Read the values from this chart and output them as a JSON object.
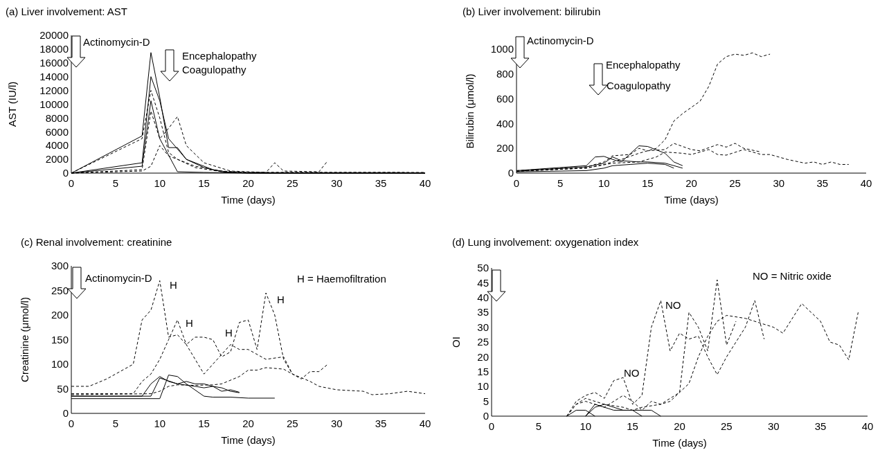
{
  "chart_data": [
    {
      "type": "line",
      "title": "(a) Liver involvement: AST",
      "xlabel": "Time (days)",
      "ylabel": "AST (IU/l)",
      "xlim": [
        0,
        40
      ],
      "ylim": [
        0,
        20000
      ],
      "xticks": [
        0,
        5,
        10,
        15,
        20,
        25,
        30,
        35,
        40
      ],
      "yticks": [
        0,
        2000,
        4000,
        6000,
        8000,
        10000,
        12000,
        14000,
        16000,
        18000,
        20000
      ],
      "annotations": [
        "Actinomycin-D",
        "Encephalopathy",
        "Coagulopathy"
      ],
      "series": [
        {
          "color": "#000000",
          "line_style": "solid",
          "x": [
            0,
            8,
            9,
            10,
            11,
            12,
            13,
            15,
            17,
            20,
            40
          ],
          "values": [
            0,
            5400,
            17500,
            11000,
            3700,
            3700,
            2000,
            800,
            200,
            0,
            0
          ]
        },
        {
          "color": "#000000",
          "line_style": "solid",
          "x": [
            0,
            8,
            9,
            10,
            11,
            13,
            16,
            18,
            22,
            40
          ],
          "values": [
            0,
            1500,
            14000,
            10500,
            5000,
            2000,
            500,
            100,
            0,
            0
          ]
        },
        {
          "color": "#000000",
          "line_style": "solid",
          "x": [
            0,
            8,
            9,
            10,
            12,
            15,
            20,
            40
          ],
          "values": [
            0,
            1000,
            10500,
            5000,
            200,
            100,
            0,
            0
          ]
        },
        {
          "color": "#000000",
          "line_style": "dashed",
          "x": [
            0,
            8,
            9,
            10,
            11,
            12,
            14,
            17,
            20,
            22,
            23,
            24,
            28,
            29
          ],
          "values": [
            0,
            5000,
            12000,
            8000,
            3000,
            2000,
            1000,
            300,
            100,
            100,
            1500,
            300,
            200,
            1800
          ]
        },
        {
          "color": "#000000",
          "line_style": "dashed",
          "x": [
            0,
            8,
            9,
            10,
            11,
            12,
            13,
            15,
            18,
            22,
            40
          ],
          "values": [
            0,
            500,
            9000,
            5000,
            6500,
            8200,
            4000,
            1500,
            300,
            100,
            100
          ]
        },
        {
          "color": "#000000",
          "line_style": "dashed",
          "x": [
            0,
            8,
            9,
            10,
            11,
            12,
            14,
            17,
            20,
            37,
            40
          ],
          "values": [
            0,
            300,
            1000,
            4000,
            2500,
            2000,
            800,
            200,
            100,
            100,
            0
          ]
        }
      ]
    },
    {
      "type": "line",
      "title": "(b) Liver involvement: bilirubin",
      "xlabel": "Time (days)",
      "ylabel": "Bilirubin (μmol/l)",
      "xlim": [
        0,
        40
      ],
      "ylim": [
        0,
        1000
      ],
      "xticks": [
        0,
        5,
        10,
        15,
        20,
        25,
        30,
        35,
        40
      ],
      "yticks": [
        0,
        200,
        400,
        600,
        800,
        1000
      ],
      "annotations": [
        "Actinomycin-D",
        "Encephalopathy",
        "Coagulopathy"
      ],
      "series": [
        {
          "color": "#000000",
          "line_style": "solid",
          "x": [
            0,
            8,
            9,
            10,
            11,
            12,
            14,
            15,
            17,
            18,
            19
          ],
          "values": [
            20,
            60,
            130,
            135,
            110,
            90,
            220,
            215,
            160,
            90,
            60
          ]
        },
        {
          "color": "#000000",
          "line_style": "solid",
          "x": [
            0,
            8,
            10,
            11,
            12,
            14,
            15,
            17,
            19
          ],
          "values": [
            15,
            50,
            80,
            130,
            100,
            90,
            90,
            80,
            40
          ]
        },
        {
          "color": "#000000",
          "line_style": "solid",
          "x": [
            0,
            8,
            10,
            11,
            13,
            15,
            17,
            18
          ],
          "values": [
            10,
            20,
            40,
            60,
            70,
            80,
            70,
            40
          ]
        },
        {
          "color": "#000000",
          "line_style": "dashed",
          "x": [
            0,
            8,
            10,
            12,
            14,
            16,
            17,
            18,
            19,
            20,
            21,
            22,
            23,
            24,
            25,
            26,
            27,
            28,
            29
          ],
          "values": [
            15,
            40,
            70,
            110,
            160,
            200,
            270,
            420,
            480,
            530,
            580,
            700,
            880,
            940,
            960,
            950,
            970,
            940,
            960
          ]
        },
        {
          "color": "#000000",
          "line_style": "dashed",
          "x": [
            0,
            8,
            10,
            11,
            13,
            14,
            15,
            17,
            18,
            20,
            21,
            23,
            24,
            25,
            26,
            28
          ],
          "values": [
            20,
            50,
            90,
            140,
            150,
            200,
            180,
            190,
            240,
            190,
            180,
            230,
            210,
            240,
            200,
            170
          ]
        },
        {
          "color": "#000000",
          "line_style": "dashed",
          "x": [
            0,
            8,
            11,
            14,
            16,
            17,
            19,
            20,
            22,
            23,
            24,
            26,
            28,
            29,
            31,
            33,
            34,
            35,
            36,
            37,
            38
          ],
          "values": [
            15,
            40,
            80,
            90,
            130,
            170,
            160,
            150,
            190,
            150,
            145,
            190,
            150,
            150,
            110,
            80,
            90,
            70,
            90,
            70,
            70
          ]
        }
      ]
    },
    {
      "type": "line",
      "title": "(c) Renal involvement: creatinine",
      "xlabel": "Time (days)",
      "ylabel": "Creatinine (μmol/l)",
      "xlim": [
        0,
        40
      ],
      "ylim": [
        0,
        300
      ],
      "xticks": [
        0,
        5,
        10,
        15,
        20,
        25,
        30,
        35,
        40
      ],
      "yticks": [
        0,
        50,
        100,
        150,
        200,
        250,
        300
      ],
      "annotations": [
        "Actinomycin-D",
        "H = Haemofiltration",
        "H",
        "H",
        "H",
        "H"
      ],
      "series": [
        {
          "color": "#000000",
          "line_style": "dashed",
          "x": [
            0,
            2,
            4,
            7,
            8,
            9,
            10,
            11,
            12,
            13,
            14,
            15,
            16,
            17,
            18,
            19,
            20,
            21,
            22,
            23,
            24,
            25
          ],
          "values": [
            55,
            55,
            70,
            100,
            190,
            210,
            270,
            155,
            160,
            140,
            155,
            155,
            150,
            115,
            125,
            185,
            190,
            130,
            245,
            200,
            110,
            80
          ]
        },
        {
          "color": "#000000",
          "line_style": "dashed",
          "x": [
            0,
            7,
            8,
            9,
            10,
            11,
            12,
            13,
            14,
            15,
            17,
            18,
            19,
            20,
            22,
            24,
            25,
            26,
            27,
            28,
            29
          ],
          "values": [
            40,
            40,
            65,
            80,
            110,
            150,
            190,
            140,
            110,
            80,
            120,
            140,
            130,
            130,
            110,
            115,
            80,
            70,
            85,
            85,
            100
          ]
        },
        {
          "color": "#000000",
          "line_style": "dashed",
          "x": [
            0,
            9,
            10,
            11,
            12,
            14,
            16,
            17,
            19,
            20,
            21,
            22,
            24,
            25,
            27,
            28,
            30,
            33,
            34,
            36,
            38,
            40
          ],
          "values": [
            38,
            40,
            45,
            55,
            58,
            57,
            58,
            60,
            75,
            88,
            88,
            93,
            90,
            80,
            65,
            55,
            48,
            45,
            38,
            40,
            45,
            40
          ]
        },
        {
          "color": "#000000",
          "line_style": "solid",
          "x": [
            0,
            8,
            9,
            10,
            11,
            12,
            13,
            14,
            15,
            16,
            17,
            18,
            19
          ],
          "values": [
            35,
            35,
            60,
            75,
            65,
            60,
            65,
            60,
            60,
            55,
            52,
            45,
            42
          ]
        },
        {
          "color": "#000000",
          "line_style": "solid",
          "x": [
            0,
            9,
            10,
            12,
            14,
            15,
            16,
            17,
            18,
            19
          ],
          "values": [
            35,
            35,
            72,
            60,
            55,
            52,
            55,
            45,
            48,
            43
          ]
        },
        {
          "color": "#000000",
          "line_style": "solid",
          "x": [
            0,
            10,
            11,
            12,
            13,
            15,
            16,
            18,
            20,
            23
          ],
          "values": [
            30,
            30,
            78,
            75,
            60,
            35,
            33,
            33,
            31,
            31
          ]
        }
      ]
    },
    {
      "type": "line",
      "title": "(d) Lung involvement: oxygenation index",
      "xlabel": "Time (days)",
      "ylabel": "OI",
      "xlim": [
        0,
        40
      ],
      "ylim": [
        0,
        50
      ],
      "xticks": [
        0,
        5,
        10,
        15,
        20,
        25,
        30,
        35,
        40
      ],
      "yticks": [
        0,
        5,
        10,
        15,
        20,
        25,
        30,
        35,
        40,
        45,
        50
      ],
      "annotations": [
        "NO = Nitric oxide",
        "NO",
        "NO"
      ],
      "series": [
        {
          "color": "#000000",
          "line_style": "dashed",
          "x": [
            8,
            9,
            10,
            11,
            12,
            13,
            14,
            15,
            16,
            17,
            18,
            19,
            20,
            21,
            22,
            23,
            24,
            25,
            27,
            28,
            29
          ],
          "values": [
            0,
            5,
            7,
            8,
            6,
            12,
            13,
            4,
            7,
            30,
            39,
            22,
            28,
            26,
            27,
            20,
            14,
            20,
            30,
            39,
            26
          ]
        },
        {
          "color": "#000000",
          "line_style": "dashed",
          "x": [
            8,
            9,
            10,
            12,
            14,
            15,
            16,
            17,
            18,
            19,
            20,
            21,
            22,
            23,
            24,
            25,
            27,
            30,
            31,
            33,
            35,
            36,
            37,
            38,
            39
          ],
          "values": [
            0,
            4,
            5,
            3,
            7,
            5,
            2,
            5,
            4,
            5,
            8,
            11,
            20,
            27,
            32,
            34,
            33,
            30,
            28,
            38,
            32,
            25,
            24,
            19,
            35
          ]
        },
        {
          "color": "#000000",
          "line_style": "dashed",
          "x": [
            8,
            9,
            10,
            12,
            14,
            15,
            16,
            18,
            20,
            21,
            22,
            23,
            24,
            25,
            26
          ],
          "values": [
            0,
            4,
            6,
            4,
            3,
            2,
            3,
            4,
            8,
            35,
            30,
            22,
            46,
            24,
            32
          ]
        },
        {
          "color": "#000000",
          "line_style": "solid",
          "x": [
            8,
            9,
            10,
            11
          ],
          "values": [
            0,
            2,
            2,
            0
          ]
        },
        {
          "color": "#000000",
          "line_style": "solid",
          "x": [
            10,
            11,
            12,
            13,
            15,
            16
          ],
          "values": [
            0,
            4,
            3,
            2,
            2,
            0
          ]
        },
        {
          "color": "#000000",
          "line_style": "solid",
          "x": [
            10,
            11,
            12,
            13,
            14,
            16,
            17,
            18
          ],
          "values": [
            0,
            3,
            4,
            3,
            2,
            2,
            2,
            0
          ]
        }
      ]
    }
  ]
}
